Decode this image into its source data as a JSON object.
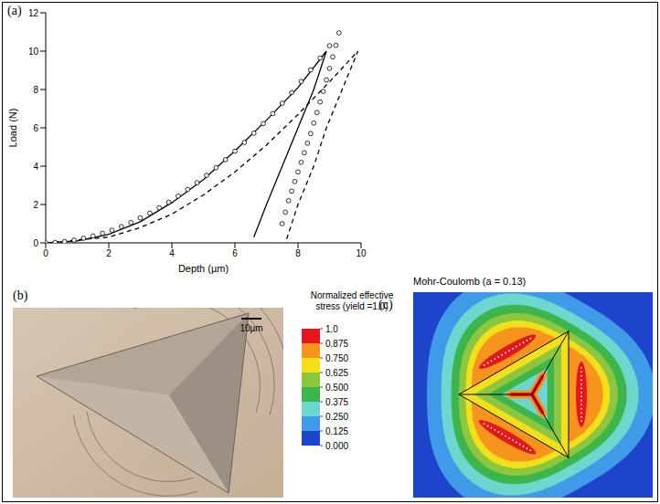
{
  "chart_data": {
    "type": "line",
    "panel": "(a)",
    "x_label": "Depth (µm)",
    "y_label": "Load (N)",
    "xlim": [
      0,
      10
    ],
    "ylim": [
      0,
      12
    ],
    "xticks": [
      0,
      2,
      4,
      6,
      8,
      10
    ],
    "yticks": [
      0,
      2,
      4,
      6,
      8,
      10,
      12
    ],
    "grid": false,
    "series": [
      {
        "color": "#000000",
        "marker": "circle",
        "line_style": "none",
        "x": [
          0,
          0.3,
          0.6,
          0.9,
          1.2,
          1.5,
          1.8,
          2.1,
          2.4,
          2.7,
          3.0,
          3.3,
          3.6,
          3.9,
          4.2,
          4.5,
          4.8,
          5.1,
          5.4,
          5.7,
          6.0,
          6.3,
          6.6,
          6.9,
          7.2,
          7.5,
          7.8,
          8.1,
          8.4,
          8.7,
          9.0,
          9.3,
          9.2,
          9.1,
          9.0,
          8.9,
          8.8,
          8.7,
          8.6,
          8.5,
          8.4,
          8.3,
          8.2,
          8.1,
          8.0,
          7.9,
          7.8,
          7.7,
          7.6,
          7.5
        ],
        "values": [
          0,
          0.02,
          0.07,
          0.14,
          0.24,
          0.36,
          0.5,
          0.66,
          0.85,
          1.06,
          1.3,
          1.55,
          1.83,
          2.12,
          2.44,
          2.78,
          3.14,
          3.52,
          3.92,
          4.34,
          4.78,
          5.24,
          5.72,
          6.22,
          6.74,
          7.28,
          7.84,
          8.42,
          9.02,
          9.64,
          10.28,
          10.95,
          10.3,
          9.7,
          9.1,
          8.5,
          7.9,
          7.35,
          6.8,
          6.25,
          5.7,
          5.2,
          4.7,
          4.2,
          3.7,
          3.2,
          2.7,
          2.2,
          1.6,
          1.0
        ]
      },
      {
        "color": "#000000",
        "line_style": "solid",
        "x": [
          0,
          1,
          2,
          3,
          4,
          5,
          6,
          7,
          8,
          8.9,
          8.5,
          8.0,
          7.5,
          7.0,
          6.6
        ],
        "values": [
          0,
          0.1,
          0.45,
          1.1,
          2.1,
          3.3,
          4.8,
          6.4,
          8.1,
          10,
          8,
          6,
          4,
          2,
          0.3
        ]
      },
      {
        "color": "#000000",
        "line_style": "dashed",
        "x": [
          0,
          2,
          3,
          4,
          5,
          6,
          7,
          8,
          9,
          9.9,
          9.4,
          8.9,
          8.5,
          8.0,
          7.6
        ],
        "values": [
          0,
          0.3,
          0.8,
          1.5,
          2.5,
          3.7,
          5.1,
          6.7,
          8.4,
          10,
          8,
          6,
          4,
          2,
          0
        ]
      }
    ]
  },
  "micrograph": {
    "panel": "(b)",
    "scale_bar": "10µm"
  },
  "contour": {
    "panel": "(c)",
    "title": "Mohr-Coulomb (a = 0.13)",
    "colorbar": {
      "title": "Normalized effective stress (yield =1.0)",
      "range": [
        0,
        1
      ],
      "ticks": [
        {
          "value": 1,
          "label": "1.0"
        },
        0.875,
        {
          "value": 0.75,
          "label": "0.750"
        },
        0.625,
        {
          "value": 0.5,
          "label": "0.500"
        },
        0.375,
        {
          "value": 0.25,
          "label": "0.250"
        },
        0.125,
        {
          "value": 0,
          "label": "0.000"
        }
      ],
      "colors": [
        "#e3171e",
        "#f7941d",
        "#f4e01a",
        "#8dc63f",
        "#3cb54a",
        "#6fd5cf",
        "#3f9be8",
        "#1f44cc"
      ]
    }
  }
}
